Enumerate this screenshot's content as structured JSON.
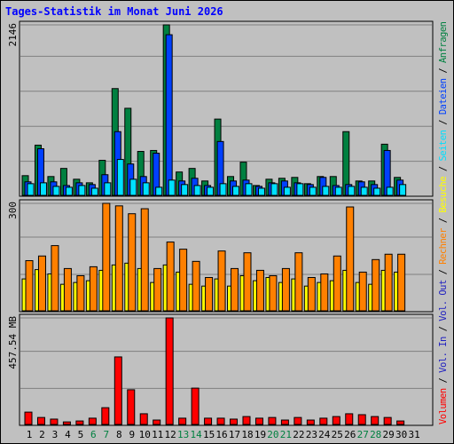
{
  "chart_data": [
    {
      "type": "bar",
      "title": "Tages-Statistik im Monat Juni 2026",
      "ylim": [
        0,
        2146
      ],
      "yticks": [
        2146
      ],
      "series": [
        {
          "name": "Anfragen",
          "color": "#008040",
          "values": [
            248,
            632,
            237,
            339,
            203,
            158,
            441,
            1344,
            1096,
            553,
            565,
            2146,
            294,
            339,
            181,
            960,
            237,
            418,
            124,
            203,
            215,
            226,
            147,
            237,
            237,
            802,
            181,
            181,
            644,
            226,
            0
          ]
        },
        {
          "name": "Dateien",
          "color": "#0040ff",
          "values": [
            170,
            587,
            170,
            124,
            158,
            136,
            260,
            802,
            395,
            237,
            531,
            2022,
            181,
            215,
            124,
            678,
            181,
            192,
            113,
            158,
            181,
            158,
            136,
            226,
            124,
            136,
            170,
            136,
            565,
            192,
            0
          ]
        },
        {
          "name": "Seiten",
          "color": "#00e0ff",
          "values": [
            147,
            158,
            113,
            102,
            124,
            90,
            158,
            452,
            203,
            158,
            102,
            192,
            136,
            124,
            102,
            147,
            113,
            147,
            90,
            147,
            102,
            147,
            102,
            113,
            102,
            113,
            102,
            90,
            102,
            136,
            0
          ]
        }
      ]
    },
    {
      "type": "bar",
      "ylim": [
        0,
        300
      ],
      "yticks": [
        300
      ],
      "series": [
        {
          "name": "Besuche",
          "color": "#ffff00",
          "values": [
            89,
            115,
            103,
            74,
            79,
            84,
            113,
            128,
            133,
            118,
            79,
            128,
            108,
            74,
            69,
            89,
            69,
            98,
            84,
            93,
            79,
            89,
            69,
            79,
            84,
            113,
            79,
            74,
            113,
            108,
            0
          ]
        },
        {
          "name": "Rechner",
          "color": "#ff8000",
          "values": [
            140,
            153,
            182,
            118,
            98,
            123,
            300,
            293,
            271,
            285,
            118,
            192,
            172,
            138,
            93,
            167,
            118,
            162,
            113,
            98,
            118,
            162,
            93,
            103,
            153,
            290,
            108,
            143,
            158,
            158,
            0
          ]
        }
      ]
    },
    {
      "type": "bar",
      "ylim": [
        0,
        457.54
      ],
      "yticks": [
        {
          "value": 457.54,
          "label": "457.54 MB"
        }
      ],
      "series": [
        {
          "name": "Volumen",
          "color": "#ff0000",
          "values": [
            53,
            30,
            23,
            11,
            15,
            27,
            72,
            290,
            149,
            46,
            19,
            457.54,
            27,
            156,
            27,
            27,
            23,
            34,
            27,
            30,
            19,
            30,
            19,
            27,
            34,
            46,
            42,
            34,
            30,
            15,
            0
          ]
        }
      ],
      "legend_extra": [
        {
          "name": "Vol. In",
          "color": "#2020c0"
        },
        {
          "name": "Vol. Out",
          "color": "#2020c0"
        }
      ],
      "legend_separator": " / ",
      "categories": [
        "1",
        "2",
        "3",
        "4",
        "5",
        "6",
        "7",
        "8",
        "9",
        "10",
        "11",
        "12",
        "13",
        "14",
        "15",
        "16",
        "17",
        "18",
        "19",
        "20",
        "21",
        "22",
        "23",
        "24",
        "25",
        "26",
        "27",
        "28",
        "29",
        "30",
        "31"
      ],
      "category_colors": [
        "#000000",
        "#000000",
        "#000000",
        "#000000",
        "#000000",
        "#008040",
        "#008040",
        "#000000",
        "#000000",
        "#000000",
        "#000000",
        "#000000",
        "#008040",
        "#008040",
        "#000000",
        "#000000",
        "#000000",
        "#000000",
        "#000000",
        "#008040",
        "#008040",
        "#000000",
        "#000000",
        "#000000",
        "#000000",
        "#000000",
        "#008040",
        "#008040",
        "#000000",
        "#000000",
        "#000000"
      ]
    }
  ]
}
